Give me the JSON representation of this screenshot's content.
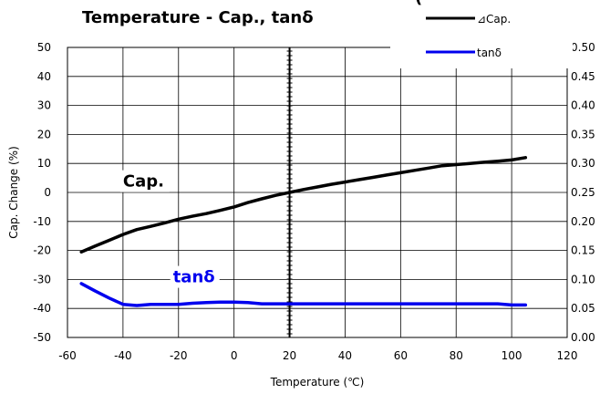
{
  "chart_data": {
    "type": "line",
    "title": "Temperature - Cap., tanδ",
    "title_fragment": "(",
    "xlabel": "Temperature (℃)",
    "ylabel": "Cap. Change (%)",
    "xlim": [
      -60,
      120
    ],
    "ylim": [
      -50,
      50
    ],
    "y2lim": [
      0,
      0.5
    ],
    "x_ticks": [
      "-60",
      "-40",
      "-20",
      "0",
      "20",
      "40",
      "60",
      "80",
      "100",
      "120"
    ],
    "y_ticks": [
      "-50",
      "-40",
      "-30",
      "-20",
      "-10",
      "0",
      "10",
      "20",
      "30",
      "40",
      "50"
    ],
    "y2_ticks": [
      "0.00",
      "0.05",
      "0.10",
      "0.15",
      "0.20",
      "0.25",
      "0.30",
      "0.35",
      "0.40",
      "0.45",
      "0.50"
    ],
    "grid": true,
    "reference_line_x": 20,
    "legend_position": "top-right",
    "colors": {
      "cap": "#000000",
      "tan": "#0000ee"
    },
    "series": [
      {
        "name": "⊿Cap.",
        "axis": "left",
        "color": "#000000",
        "x": [
          -55,
          -50,
          -45,
          -40,
          -35,
          -30,
          -25,
          -20,
          -15,
          -10,
          -5,
          0,
          5,
          10,
          15,
          20,
          25,
          30,
          35,
          40,
          45,
          50,
          55,
          60,
          65,
          70,
          75,
          80,
          85,
          90,
          95,
          100,
          105
        ],
        "y": [
          -20.5,
          -18.5,
          -16.5,
          -14.5,
          -12.8,
          -11.7,
          -10.5,
          -9.2,
          -8.2,
          -7.3,
          -6.2,
          -5.0,
          -3.5,
          -2.2,
          -1.0,
          0.0,
          1.0,
          1.9,
          2.8,
          3.6,
          4.4,
          5.2,
          6.0,
          6.8,
          7.6,
          8.4,
          9.2,
          9.6,
          10.0,
          10.4,
          10.8,
          11.2,
          12.0
        ]
      },
      {
        "name": "tanδ",
        "axis": "right",
        "color": "#0000ee",
        "x": [
          -55,
          -50,
          -45,
          -40,
          -35,
          -30,
          -25,
          -20,
          -15,
          -10,
          -5,
          0,
          5,
          10,
          20,
          40,
          60,
          80,
          95,
          100,
          105
        ],
        "y": [
          0.093,
          0.08,
          0.068,
          0.057,
          0.055,
          0.057,
          0.057,
          0.057,
          0.059,
          0.06,
          0.061,
          0.061,
          0.06,
          0.058,
          0.058,
          0.058,
          0.058,
          0.058,
          0.058,
          0.056,
          0.056
        ]
      }
    ],
    "annotations": [
      {
        "text": "Cap.",
        "x": -40,
        "y": 2,
        "axis": "left",
        "color": "#000000"
      },
      {
        "text": "tanδ",
        "x": -22,
        "y": 0.095,
        "axis": "right",
        "color": "#0000ee"
      }
    ]
  }
}
